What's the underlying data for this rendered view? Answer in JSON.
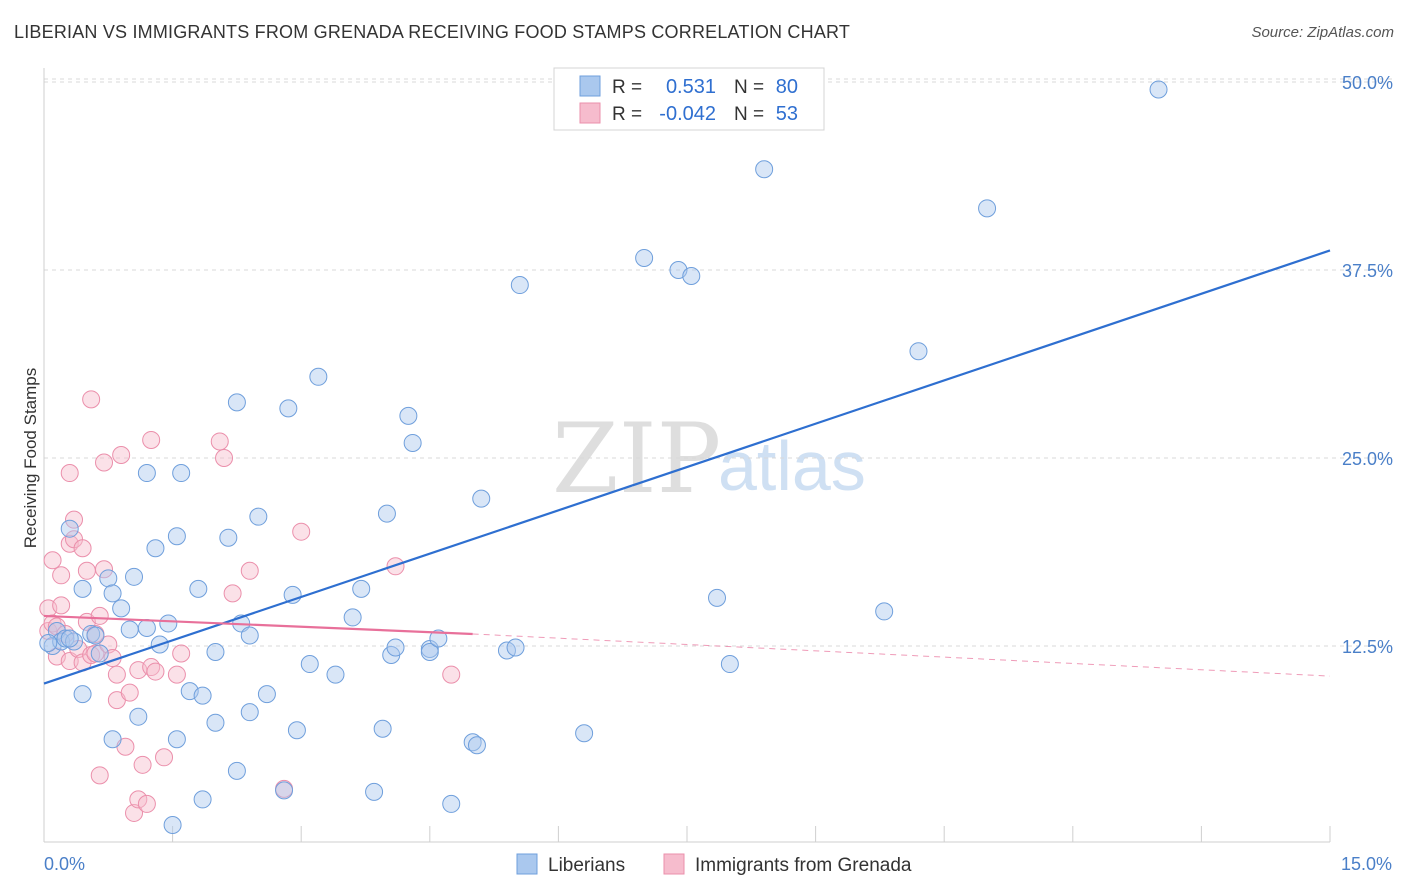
{
  "header": {
    "title": "LIBERIAN VS IMMIGRANTS FROM GRENADA RECEIVING FOOD STAMPS CORRELATION CHART",
    "source": "Source: ZipAtlas.com"
  },
  "watermark": {
    "zip": "ZIP",
    "atlas": "atlas"
  },
  "stats": {
    "row1": {
      "r_label": "R =",
      "r_value": "0.531",
      "n_label": "N =",
      "n_value": "80"
    },
    "row2": {
      "r_label": "R =",
      "r_value": "-0.042",
      "n_label": "N =",
      "n_value": "53"
    }
  },
  "legend": {
    "series1": "Liberians",
    "series2": "Immigrants from Grenada"
  },
  "colors": {
    "blue_fill": "#aac8ee",
    "blue_stroke": "#6f9fdc",
    "blue_line": "#2e6fd0",
    "pink_fill": "#f6bccd",
    "pink_stroke": "#eb8fab",
    "pink_line": "#e8709a",
    "grid": "#d8d8d8",
    "tick_text": "#4a7fc8"
  },
  "chart_data": {
    "type": "scatter",
    "title": "LIBERIAN VS IMMIGRANTS FROM GRENADA RECEIVING FOOD STAMPS CORRELATION CHART",
    "xlabel": "",
    "ylabel": "Receiving Food Stamps",
    "xlim": [
      0,
      15
    ],
    "ylim": [
      0,
      50
    ],
    "x_tick_labels": [
      "0.0%",
      "15.0%"
    ],
    "y_ticks": [
      12.5,
      25,
      37.5,
      50
    ],
    "y_tick_labels": [
      "12.5%",
      "25.0%",
      "37.5%",
      "50.0%"
    ],
    "grid": true,
    "legend_position": "bottom-center",
    "series": [
      {
        "name": "Liberians",
        "r": 0.531,
        "n": 80,
        "trend": {
          "x": [
            0,
            15
          ],
          "y": [
            10.0,
            38.8
          ]
        },
        "points": [
          [
            0.1,
            12.5
          ],
          [
            0.15,
            13.5
          ],
          [
            0.2,
            12.8
          ],
          [
            0.25,
            13.0
          ],
          [
            0.3,
            20.3
          ],
          [
            0.35,
            12.8
          ],
          [
            0.45,
            9.3
          ],
          [
            0.45,
            16.3
          ],
          [
            0.55,
            13.3
          ],
          [
            0.6,
            13.2
          ],
          [
            0.65,
            12.0
          ],
          [
            0.8,
            6.3
          ],
          [
            0.75,
            17.0
          ],
          [
            0.8,
            16.0
          ],
          [
            0.9,
            15.0
          ],
          [
            1.0,
            13.6
          ],
          [
            1.05,
            17.1
          ],
          [
            1.1,
            7.8
          ],
          [
            1.2,
            24.0
          ],
          [
            1.2,
            13.7
          ],
          [
            1.3,
            19.0
          ],
          [
            1.35,
            12.6
          ],
          [
            1.45,
            14.0
          ],
          [
            1.5,
            0.6
          ],
          [
            1.55,
            19.8
          ],
          [
            1.55,
            6.3
          ],
          [
            1.6,
            24.0
          ],
          [
            1.7,
            9.5
          ],
          [
            1.8,
            16.3
          ],
          [
            1.85,
            9.2
          ],
          [
            1.85,
            2.3
          ],
          [
            2.0,
            12.1
          ],
          [
            2.0,
            7.4
          ],
          [
            2.15,
            19.7
          ],
          [
            2.25,
            28.7
          ],
          [
            2.25,
            4.2
          ],
          [
            2.3,
            14.0
          ],
          [
            2.4,
            8.1
          ],
          [
            2.4,
            13.2
          ],
          [
            2.5,
            21.1
          ],
          [
            2.6,
            9.3
          ],
          [
            2.8,
            2.9
          ],
          [
            2.85,
            28.3
          ],
          [
            2.9,
            15.9
          ],
          [
            2.95,
            6.9
          ],
          [
            3.1,
            11.3
          ],
          [
            3.2,
            30.4
          ],
          [
            3.4,
            10.6
          ],
          [
            3.6,
            14.4
          ],
          [
            3.7,
            16.3
          ],
          [
            3.85,
            2.8
          ],
          [
            3.95,
            7.0
          ],
          [
            4.0,
            21.3
          ],
          [
            4.05,
            11.9
          ],
          [
            4.1,
            12.4
          ],
          [
            4.25,
            27.8
          ],
          [
            4.3,
            26.0
          ],
          [
            4.5,
            12.3
          ],
          [
            4.5,
            12.1
          ],
          [
            4.6,
            13.0
          ],
          [
            4.75,
            2.0
          ],
          [
            5.0,
            6.1
          ],
          [
            5.05,
            5.9
          ],
          [
            5.1,
            22.3
          ],
          [
            5.4,
            12.2
          ],
          [
            5.5,
            12.4
          ],
          [
            5.55,
            36.5
          ],
          [
            6.3,
            6.7
          ],
          [
            7.0,
            38.3
          ],
          [
            7.4,
            37.5
          ],
          [
            7.55,
            37.1
          ],
          [
            7.85,
            15.7
          ],
          [
            8.0,
            11.3
          ],
          [
            8.4,
            44.2
          ],
          [
            9.8,
            14.8
          ],
          [
            10.2,
            32.1
          ],
          [
            11.0,
            41.6
          ],
          [
            13.0,
            49.5
          ],
          [
            0.05,
            12.7
          ],
          [
            0.3,
            13.0
          ]
        ]
      },
      {
        "name": "Immigrants from Grenada",
        "r": -0.042,
        "n": 53,
        "trend": {
          "x": [
            0,
            5.0
          ],
          "y": [
            14.5,
            13.3
          ]
        },
        "trend_extended": {
          "x": [
            5.0,
            15
          ],
          "y": [
            13.3,
            10.5
          ]
        },
        "points": [
          [
            0.05,
            15.0
          ],
          [
            0.05,
            13.5
          ],
          [
            0.1,
            18.2
          ],
          [
            0.1,
            14.0
          ],
          [
            0.15,
            11.8
          ],
          [
            0.15,
            13.8
          ],
          [
            0.2,
            15.2
          ],
          [
            0.2,
            17.2
          ],
          [
            0.25,
            13.3
          ],
          [
            0.3,
            19.3
          ],
          [
            0.3,
            11.5
          ],
          [
            0.3,
            24.0
          ],
          [
            0.35,
            19.6
          ],
          [
            0.35,
            20.9
          ],
          [
            0.4,
            12.3
          ],
          [
            0.45,
            19.0
          ],
          [
            0.45,
            11.4
          ],
          [
            0.5,
            17.5
          ],
          [
            0.5,
            14.1
          ],
          [
            0.55,
            11.9
          ],
          [
            0.55,
            28.9
          ],
          [
            0.6,
            13.3
          ],
          [
            0.6,
            12.0
          ],
          [
            0.65,
            3.9
          ],
          [
            0.65,
            14.5
          ],
          [
            0.7,
            24.7
          ],
          [
            0.7,
            17.6
          ],
          [
            0.75,
            12.6
          ],
          [
            0.8,
            11.7
          ],
          [
            0.85,
            10.6
          ],
          [
            0.85,
            8.9
          ],
          [
            0.9,
            25.2
          ],
          [
            0.95,
            5.8
          ],
          [
            1.0,
            9.4
          ],
          [
            1.05,
            1.4
          ],
          [
            1.1,
            2.3
          ],
          [
            1.1,
            10.9
          ],
          [
            1.15,
            4.6
          ],
          [
            1.2,
            2.0
          ],
          [
            1.25,
            26.2
          ],
          [
            1.25,
            11.1
          ],
          [
            1.3,
            10.8
          ],
          [
            1.4,
            5.1
          ],
          [
            1.55,
            10.6
          ],
          [
            2.05,
            26.1
          ],
          [
            2.1,
            25.0
          ],
          [
            2.2,
            16.0
          ],
          [
            2.4,
            17.5
          ],
          [
            2.8,
            3.0
          ],
          [
            3.0,
            20.1
          ],
          [
            4.1,
            17.8
          ],
          [
            4.75,
            10.6
          ],
          [
            1.6,
            12.0
          ]
        ]
      }
    ]
  }
}
